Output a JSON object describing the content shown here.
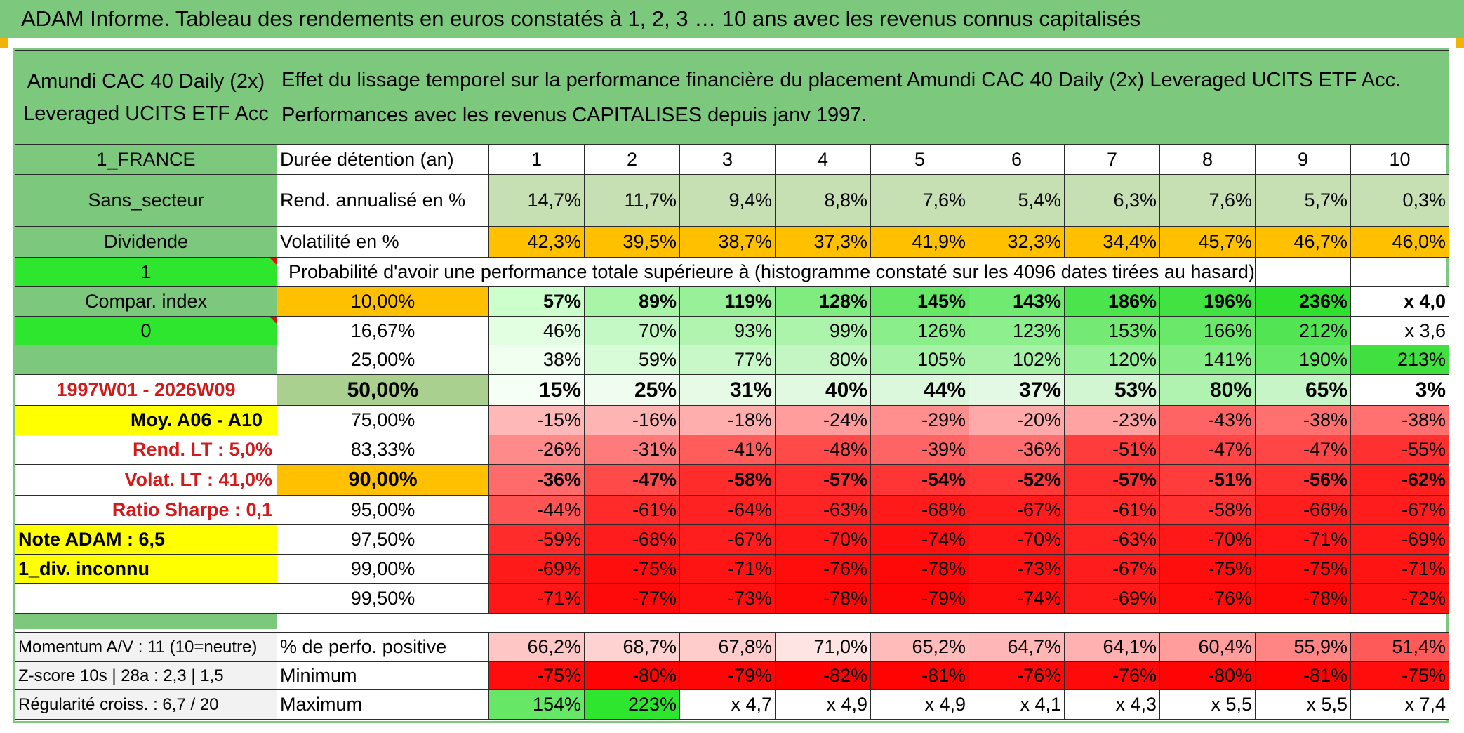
{
  "title": "ADAM Informe. Tableau des rendements en euros constatés à 1, 2, 3 … 10 ans avec les revenus connus capitalisés",
  "header": {
    "fund_line1": "Amundi CAC 40 Daily (2x)",
    "fund_line2": "Leveraged UCITS ETF Acc",
    "desc_line1": "Effet du lissage temporel sur la performance financière du placement Amundi CAC 40 Daily (2x) Leveraged UCITS ETF Acc.",
    "desc_line2": "Performances avec les revenus CAPITALISES depuis janv 1997."
  },
  "labels": {
    "country": "1_FRANCE",
    "sector": "Sans_secteur",
    "dividend": "Dividende",
    "one": "1",
    "compar": "Compar. index",
    "zero": "0",
    "period": "1997W01 - 2026W09",
    "moy": "Moy. A06 - A10",
    "rend_lt": "Rend. LT :   5,0%",
    "volat_lt": "Volat. LT :   41,0%",
    "sharpe": "Ratio Sharpe :    0,1",
    "note": "Note ADAM : 6,5",
    "div_inconnu": "1_div. inconnu",
    "momentum": "Momentum A/V : 11 (10=neutre)",
    "zscore": "Z-score 10s | 28a : 2,3 | 1,5",
    "regularite": "Régularité croiss. : 6,7 / 20"
  },
  "duration_label": "Durée détention (an)",
  "years": [
    "1",
    "2",
    "3",
    "4",
    "5",
    "6",
    "7",
    "8",
    "9",
    "10"
  ],
  "rend": {
    "label": "Rend. annualisé en %",
    "values": [
      "14,7%",
      "11,7%",
      "9,4%",
      "8,8%",
      "7,6%",
      "5,4%",
      "6,3%",
      "7,6%",
      "5,7%",
      "0,3%"
    ]
  },
  "volat": {
    "label": "Volatilité en %",
    "values": [
      "42,3%",
      "39,5%",
      "38,7%",
      "37,3%",
      "41,9%",
      "32,3%",
      "34,4%",
      "45,7%",
      "46,7%",
      "46,0%"
    ]
  },
  "prob_title": "Probabilité d'avoir une performance totale supérieure à (histogramme constaté sur les 4096 dates tirées au hasard)",
  "quantiles": [
    {
      "q": "10,00%",
      "values": [
        "57%",
        "89%",
        "119%",
        "128%",
        "145%",
        "143%",
        "186%",
        "196%",
        "236%",
        "x 4,0"
      ]
    },
    {
      "q": "16,67%",
      "values": [
        "46%",
        "70%",
        "93%",
        "99%",
        "126%",
        "123%",
        "153%",
        "166%",
        "212%",
        "x 3,6"
      ]
    },
    {
      "q": "25,00%",
      "values": [
        "38%",
        "59%",
        "77%",
        "80%",
        "105%",
        "102%",
        "120%",
        "141%",
        "190%",
        "213%"
      ]
    },
    {
      "q": "50,00%",
      "values": [
        "15%",
        "25%",
        "31%",
        "40%",
        "44%",
        "37%",
        "53%",
        "80%",
        "65%",
        "3%"
      ]
    },
    {
      "q": "75,00%",
      "values": [
        "-15%",
        "-16%",
        "-18%",
        "-24%",
        "-29%",
        "-20%",
        "-23%",
        "-43%",
        "-38%",
        "-38%"
      ]
    },
    {
      "q": "83,33%",
      "values": [
        "-26%",
        "-31%",
        "-41%",
        "-48%",
        "-39%",
        "-36%",
        "-51%",
        "-47%",
        "-47%",
        "-55%"
      ]
    },
    {
      "q": "90,00%",
      "values": [
        "-36%",
        "-47%",
        "-58%",
        "-57%",
        "-54%",
        "-52%",
        "-57%",
        "-51%",
        "-56%",
        "-62%"
      ]
    },
    {
      "q": "95,00%",
      "values": [
        "-44%",
        "-61%",
        "-64%",
        "-63%",
        "-68%",
        "-67%",
        "-61%",
        "-58%",
        "-66%",
        "-67%"
      ]
    },
    {
      "q": "97,50%",
      "values": [
        "-59%",
        "-68%",
        "-67%",
        "-70%",
        "-74%",
        "-70%",
        "-63%",
        "-70%",
        "-71%",
        "-69%"
      ]
    },
    {
      "q": "99,00%",
      "values": [
        "-69%",
        "-75%",
        "-71%",
        "-76%",
        "-78%",
        "-73%",
        "-67%",
        "-75%",
        "-75%",
        "-71%"
      ]
    },
    {
      "q": "99,50%",
      "values": [
        "-71%",
        "-77%",
        "-73%",
        "-78%",
        "-79%",
        "-74%",
        "-69%",
        "-76%",
        "-78%",
        "-72%"
      ]
    }
  ],
  "positive": {
    "label": "% de perfo. positive",
    "values": [
      "66,2%",
      "68,7%",
      "67,8%",
      "71,0%",
      "65,2%",
      "64,7%",
      "64,1%",
      "60,4%",
      "55,9%",
      "51,4%"
    ]
  },
  "minimum": {
    "label": "Minimum",
    "values": [
      "-75%",
      "-80%",
      "-79%",
      "-82%",
      "-81%",
      "-76%",
      "-76%",
      "-80%",
      "-81%",
      "-75%"
    ]
  },
  "maximum": {
    "label": "Maximum",
    "values": [
      "154%",
      "223%",
      "x 4,7",
      "x 4,9",
      "x 4,9",
      "x 4,1",
      "x 4,3",
      "x 5,5",
      "x 5,5",
      "x 7,4"
    ]
  },
  "colors": {
    "title_green": "#7cc87c",
    "bright_green": "#2ee62e",
    "orange": "#ffc000",
    "yellow": "#ffff00",
    "label_red": "#d21a1a"
  },
  "cell_colors": {
    "rend": [
      "#c6e0b4",
      "#c6e0b4",
      "#c6e0b4",
      "#c6e0b4",
      "#c6e0b4",
      "#c6e0b4",
      "#c6e0b4",
      "#c6e0b4",
      "#c6e0b4",
      "#c6e0b4"
    ],
    "volat": [
      "#ffc000",
      "#ffc000",
      "#ffc000",
      "#ffc000",
      "#ffc000",
      "#ffc000",
      "#ffc000",
      "#ffc000",
      "#ffc000",
      "#ffc000"
    ],
    "quantiles": [
      [
        "#ccffcc",
        "#a8f5a8",
        "#98f098",
        "#80ec80",
        "#66e866",
        "#70ea70",
        "#4ce44c",
        "#42e242",
        "#2fe02f",
        "#ffffff"
      ],
      [
        "#e2ffe2",
        "#c4f8c4",
        "#b0f4b0",
        "#acf3ac",
        "#8aee8a",
        "#8eef8e",
        "#74ea74",
        "#6ae86a",
        "#52e452",
        "#ffffff"
      ],
      [
        "#f0fff0",
        "#d8fbd8",
        "#c8f7c8",
        "#c4f6c4",
        "#a6f2a6",
        "#a8f2a8",
        "#98f098",
        "#86ed86",
        "#68e868",
        "#40e040"
      ],
      [
        "#f6fff6",
        "#effcef",
        "#e6fae6",
        "#e0f9e0",
        "#dcf8dc",
        "#e4f9e4",
        "#d2f6d2",
        "#b0f2b0",
        "#c8f5c8",
        "#ffffff"
      ],
      [
        "#ffb8b8",
        "#ffb4b4",
        "#ffaeae",
        "#ff9c9c",
        "#ff8e8e",
        "#ffaaaa",
        "#ffa2a2",
        "#ff6464",
        "#ff7070",
        "#ff7070"
      ],
      [
        "#ff8a8a",
        "#ff7b7b",
        "#ff5c5c",
        "#ff4a4a",
        "#ff6464",
        "#ff6e6e",
        "#ff3c3c",
        "#ff4646",
        "#ff4646",
        "#ff3030"
      ],
      [
        "#ff6a6a",
        "#ff4a4a",
        "#ff2c2c",
        "#ff2e2e",
        "#ff3434",
        "#ff3838",
        "#ff2e2e",
        "#ff3c3c",
        "#ff3232",
        "#ff2020"
      ],
      [
        "#ff5454",
        "#ff2a2a",
        "#ff2222",
        "#ff2424",
        "#ff1a1a",
        "#ff1c1c",
        "#ff2a2a",
        "#ff3030",
        "#ff1e1e",
        "#ff1c1c"
      ],
      [
        "#ff2c2c",
        "#ff1c1c",
        "#ff1e1e",
        "#ff1818",
        "#ff1010",
        "#ff1818",
        "#ff2424",
        "#ff1818",
        "#ff1616",
        "#ff1a1a"
      ],
      [
        "#ff1a1a",
        "#ff0e0e",
        "#ff1414",
        "#ff0c0c",
        "#ff0808",
        "#ff1010",
        "#ff1c1c",
        "#ff0e0e",
        "#ff0e0e",
        "#ff1414"
      ],
      [
        "#ff1616",
        "#ff0a0a",
        "#ff1010",
        "#ff0808",
        "#ff0606",
        "#ff0e0e",
        "#ff1a1a",
        "#ff0c0c",
        "#ff0808",
        "#ff1212"
      ]
    ],
    "positive": [
      "#ffc6c6",
      "#ffd2d2",
      "#ffcccc",
      "#ffe4e4",
      "#ffbaba",
      "#ffb6b6",
      "#ffb0b0",
      "#ff9c9c",
      "#ff8484",
      "#ff5a5a"
    ],
    "minimum": [
      "#ff0c0c",
      "#ff0404",
      "#ff0606",
      "#ff0000",
      "#ff0202",
      "#ff0a0a",
      "#ff0a0a",
      "#ff0404",
      "#ff0202",
      "#ff0c0c"
    ],
    "maximum": [
      "#66e866",
      "#2ee62e",
      "#ffffff",
      "#ffffff",
      "#ffffff",
      "#ffffff",
      "#ffffff",
      "#ffffff",
      "#ffffff",
      "#ffffff"
    ]
  }
}
